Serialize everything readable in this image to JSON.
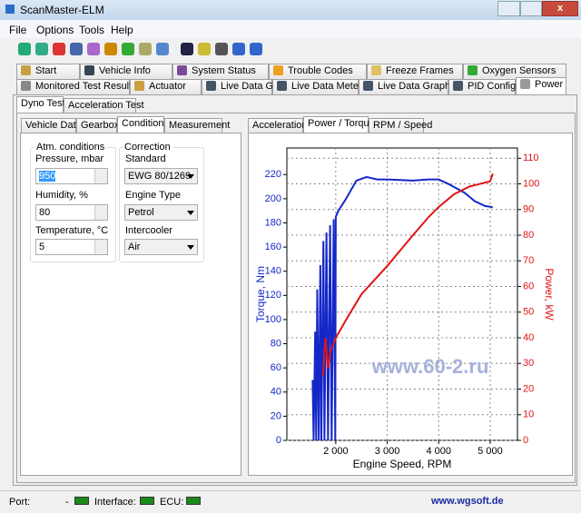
{
  "window": {
    "title": "ScanMaster-ELM"
  },
  "menu": [
    "File",
    "Options",
    "Tools",
    "Help"
  ],
  "main_tabs": {
    "row1": [
      "Start",
      "Vehicle Info",
      "System Status",
      "Trouble Codes",
      "Freeze Frames",
      "Oxygen Sensors"
    ],
    "row2": [
      "Monitored Test Results",
      "Actuator",
      "Live Data Grid",
      "Live Data Meter",
      "Live Data Graph",
      "PID Config",
      "Power"
    ]
  },
  "dyno_tabs": [
    "Dyno Test",
    "Acceleration Test"
  ],
  "sub_tabs": [
    "Vehicle Data",
    "Gearbox",
    "Conditions",
    "Measurement"
  ],
  "conditions": {
    "atm": {
      "title": "Atm. conditions",
      "fields": [
        {
          "label": "Pressure, mbar",
          "value": "950"
        },
        {
          "label": "Humidity, %",
          "value": "80"
        },
        {
          "label": "Temperature, °C",
          "value": "5"
        }
      ]
    },
    "correction": {
      "title": "Correction",
      "fields": [
        {
          "label": "Standard",
          "value": "EWG 80/1269"
        },
        {
          "label": "Engine Type",
          "value": "Petrol"
        },
        {
          "label": "Intercooler",
          "value": "Air"
        }
      ]
    }
  },
  "chart_tabs": [
    "Acceleration",
    "Power / Torque",
    "RPM / Speed"
  ],
  "chart_data": {
    "type": "line",
    "x_label": "Engine Speed, RPM",
    "y_label": "Torque, Nm",
    "y2_label": "Power, kW",
    "annotation": "www.60-2.ru",
    "xlim": [
      1050,
      5530
    ],
    "xticks": [
      {
        "value": 2000,
        "label": "2 000"
      },
      {
        "value": 3000,
        "label": "3 000"
      },
      {
        "value": 4000,
        "label": "4 000"
      },
      {
        "value": 5000,
        "label": "5 000"
      }
    ],
    "ylim": [
      0,
      242
    ],
    "yticks": [
      0,
      20,
      40,
      60,
      80,
      100,
      120,
      140,
      160,
      180,
      200,
      220
    ],
    "y2lim": [
      0,
      114
    ],
    "y2ticks": [
      0,
      10,
      20,
      30,
      40,
      50,
      60,
      70,
      80,
      90,
      100,
      110
    ],
    "grid": true,
    "series": [
      {
        "color": "#1428c8",
        "axis": "y",
        "x": [
          1550,
          1570,
          1600,
          1620,
          1640,
          1670,
          1700,
          1720,
          1760,
          1780,
          1820,
          1850,
          1890,
          1920,
          1960,
          1990,
          2000,
          2050,
          2200,
          2400,
          2600,
          2800,
          3000,
          3500,
          3800,
          4000,
          4200,
          4500,
          4700,
          4900,
          5050
        ],
        "values": [
          50,
          0,
          90,
          0,
          125,
          0,
          145,
          0,
          165,
          0,
          172,
          0,
          178,
          0,
          183,
          0,
          185,
          190,
          200,
          215,
          218,
          216,
          216,
          215,
          216,
          216,
          212,
          205,
          198,
          194,
          193
        ]
      },
      {
        "color": "#e01414",
        "axis": "y2",
        "x": [
          1750,
          1800,
          1850,
          1900,
          2000,
          2200,
          2500,
          3000,
          3500,
          3800,
          4000,
          4300,
          4600,
          4800,
          5000,
          5050
        ],
        "values": [
          25,
          40,
          28,
          35,
          40,
          47,
          57,
          68,
          80,
          87,
          91,
          96,
          99,
          100,
          101,
          104
        ]
      }
    ]
  },
  "status_bar": {
    "port": "Port:",
    "port_value": "-",
    "interface": "Interface:",
    "ecu": "ECU:",
    "link": "www.wgsoft.de"
  }
}
